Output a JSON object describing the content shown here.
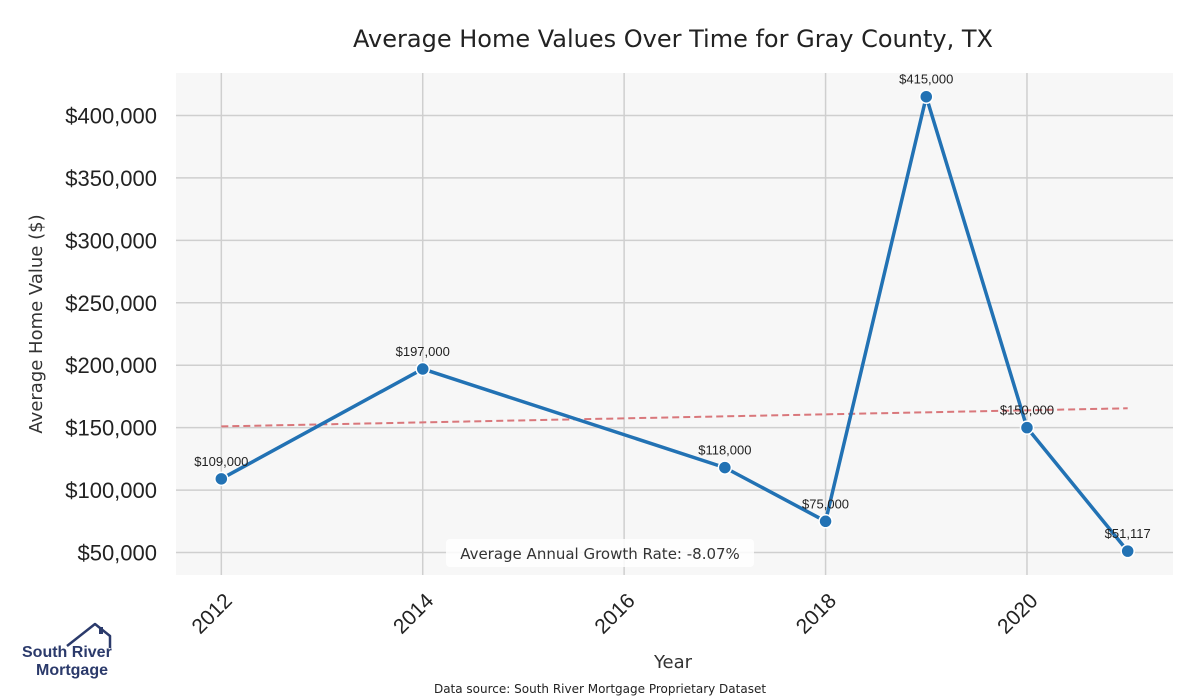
{
  "chart_data": {
    "type": "line",
    "title": "Average Home Values Over Time for Gray County, TX",
    "xlabel": "Year",
    "ylabel": "Average Home Value ($)",
    "x": [
      2012,
      2014,
      2017,
      2018,
      2019,
      2020,
      2021
    ],
    "values": [
      109000,
      197000,
      118000,
      75000,
      415000,
      150000,
      51117
    ],
    "data_labels": [
      "$109,000",
      "$197,000",
      "$118,000",
      "$75,000",
      "$415,000",
      "$150,000",
      "$51,117"
    ],
    "xticks": [
      2012,
      2014,
      2016,
      2018,
      2020
    ],
    "xtick_labels": [
      "2012",
      "2014",
      "2016",
      "2018",
      "2020"
    ],
    "yticks": [
      50000,
      100000,
      150000,
      200000,
      250000,
      300000,
      350000,
      400000
    ],
    "ytick_labels": [
      "$50,000",
      "$100,000",
      "$150,000",
      "$200,000",
      "$250,000",
      "$300,000",
      "$350,000",
      "$400,000"
    ],
    "xlim": [
      2011.55,
      2021.45
    ],
    "ylim": [
      32000,
      434000
    ],
    "trend_line": {
      "x": [
        2012,
        2021
      ],
      "y": [
        151000,
        165500
      ]
    },
    "annotation": "Average Annual Growth Rate: -8.07%",
    "series_color": "#2272b4",
    "trend_color": "#d9777b",
    "grid": true,
    "background": "#f7f7f7"
  },
  "source_note": "Data source: South River Mortgage Proprietary Dataset",
  "logo": {
    "line1": "South River",
    "line2": "Mortgage",
    "color": "#2b3a6b"
  }
}
